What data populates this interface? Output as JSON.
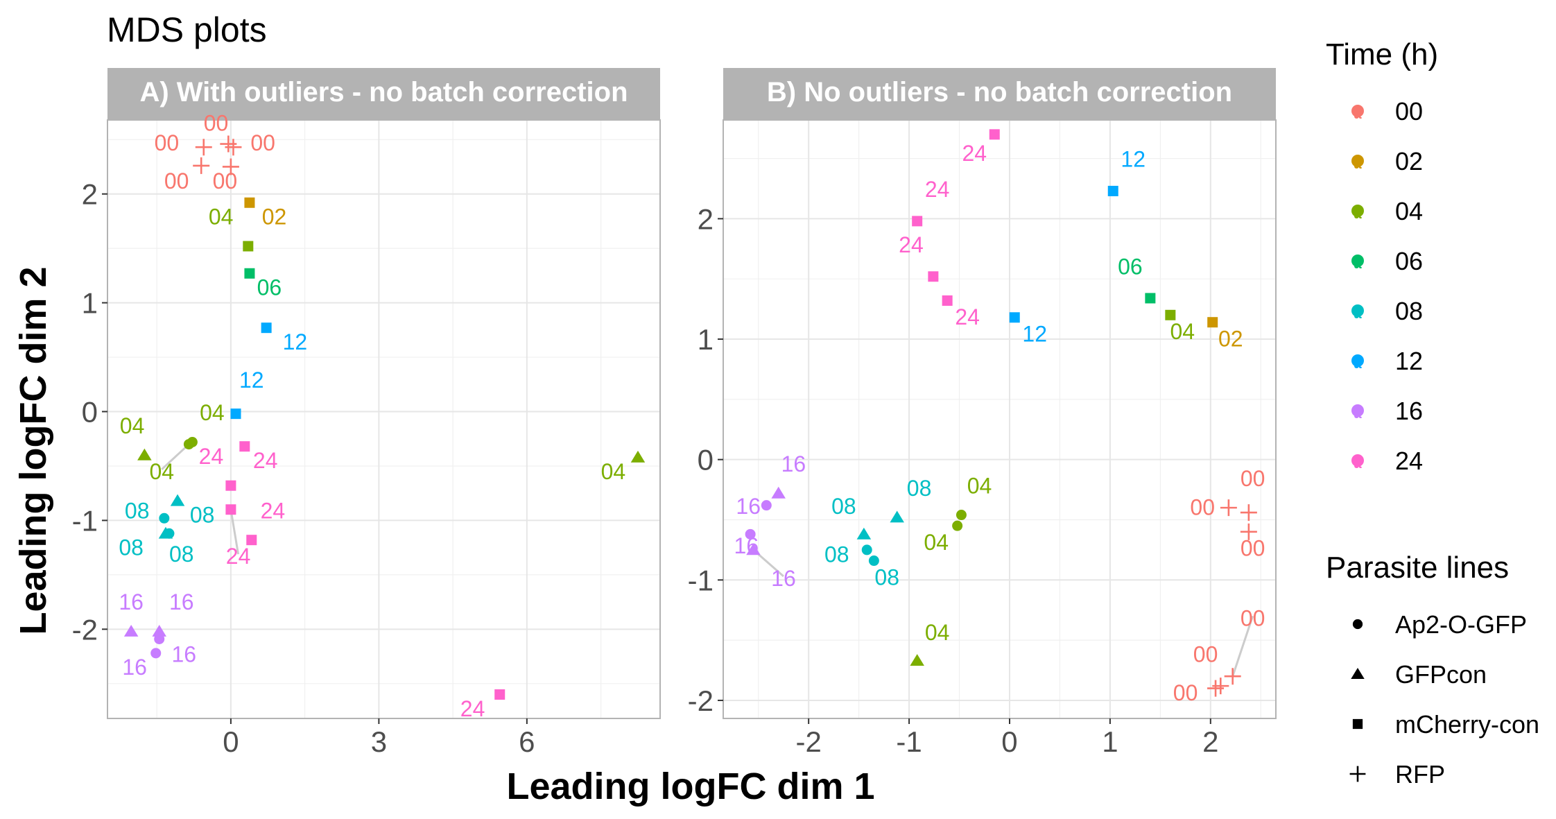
{
  "title": "MDS plots",
  "xlabel": "Leading logFC dim 1",
  "ylabel": "Leading logFC dim 2",
  "colors": {
    "00": "#F8766D",
    "02": "#CD9600",
    "04": "#7CAE00",
    "06": "#00BE67",
    "08": "#00BFC4",
    "12": "#00A9FF",
    "16": "#C77CFF",
    "24": "#FF61CC"
  },
  "legend": {
    "time": {
      "title": "Time (h)",
      "entries": [
        "00",
        "02",
        "04",
        "06",
        "08",
        "12",
        "16",
        "24"
      ]
    },
    "lines": {
      "title": "Parasite lines",
      "entries": [
        {
          "label": "Ap2-O-GFP",
          "shape": "circle"
        },
        {
          "label": "GFPcon",
          "shape": "triangle"
        },
        {
          "label": "mCherry-con",
          "shape": "square"
        },
        {
          "label": "RFP",
          "shape": "plus"
        }
      ]
    }
  },
  "chart_data": [
    {
      "type": "scatter",
      "title": "A) With outliers - no batch correction",
      "xlim": [
        -2.5,
        8.7
      ],
      "ylim": [
        -2.82,
        2.68
      ],
      "xticks": [
        0,
        3,
        6
      ],
      "yticks": [
        -2,
        -1,
        0,
        1,
        2
      ],
      "points": [
        {
          "x": -0.55,
          "y": 2.43,
          "time": "00",
          "line": "RFP",
          "label": "00",
          "lx": -1.3,
          "ly": 2.4
        },
        {
          "x": -0.05,
          "y": 2.46,
          "time": "00",
          "line": "RFP",
          "label": "00",
          "lx": -0.3,
          "ly": 2.58
        },
        {
          "x": 0.05,
          "y": 2.43,
          "time": "00",
          "line": "RFP",
          "label": "00",
          "lx": 0.65,
          "ly": 2.4
        },
        {
          "x": -0.6,
          "y": 2.26,
          "time": "00",
          "line": "RFP",
          "label": "00",
          "lx": -1.1,
          "ly": 2.05
        },
        {
          "x": 0.0,
          "y": 2.25,
          "time": "00",
          "line": "RFP",
          "label": "00",
          "lx": -0.12,
          "ly": 2.05
        },
        {
          "x": 0.38,
          "y": 1.92,
          "time": "02",
          "line": "mCherry-con",
          "label": "02",
          "lx": 0.88,
          "ly": 1.72
        },
        {
          "x": 0.35,
          "y": 1.52,
          "time": "04",
          "line": "mCherry-con",
          "label": "04",
          "lx": -0.2,
          "ly": 1.72
        },
        {
          "x": 0.38,
          "y": 1.27,
          "time": "06",
          "line": "mCherry-con",
          "label": "06",
          "lx": 0.78,
          "ly": 1.07
        },
        {
          "x": 0.72,
          "y": 0.77,
          "time": "12",
          "line": "mCherry-con",
          "label": "12",
          "lx": 1.3,
          "ly": 0.57
        },
        {
          "x": 0.1,
          "y": -0.02,
          "time": "12",
          "line": "mCherry-con",
          "label": "12",
          "lx": 0.42,
          "ly": 0.22
        },
        {
          "x": 0.28,
          "y": -0.32,
          "time": "24",
          "line": "mCherry-con",
          "label": "24",
          "lx": 0.7,
          "ly": -0.52
        },
        {
          "x": 0.0,
          "y": -0.68,
          "time": "24",
          "line": "mCherry-con",
          "label": "24",
          "lx": -0.4,
          "ly": -0.48
        },
        {
          "x": 0.0,
          "y": -0.9,
          "time": "24",
          "line": "mCherry-con",
          "label": "24",
          "lx": 0.15,
          "ly": -1.4,
          "seg": true
        },
        {
          "x": 0.42,
          "y": -1.18,
          "time": "24",
          "line": "mCherry-con",
          "label": "24",
          "lx": 0.85,
          "ly": -0.98
        },
        {
          "x": 5.45,
          "y": -2.6,
          "time": "24",
          "line": "mCherry-con",
          "label": "24",
          "lx": 4.9,
          "ly": -2.8
        },
        {
          "x": -1.75,
          "y": -0.4,
          "time": "04",
          "line": "GFPcon",
          "label": "04",
          "lx": -2.0,
          "ly": -0.2
        },
        {
          "x": 8.25,
          "y": -0.42,
          "time": "04",
          "line": "GFPcon",
          "label": "04",
          "lx": 7.75,
          "ly": -0.62
        },
        {
          "x": -0.85,
          "y": -0.3,
          "time": "04",
          "line": "Ap2-O-GFP",
          "label": "04",
          "lx": -1.4,
          "ly": -0.62,
          "seg": true
        },
        {
          "x": -0.78,
          "y": -0.28,
          "time": "04",
          "line": "Ap2-O-GFP",
          "label": "04",
          "lx": -0.38,
          "ly": -0.08
        },
        {
          "x": -1.08,
          "y": -0.82,
          "time": "08",
          "line": "GFPcon",
          "label": "08",
          "lx": -0.58,
          "ly": -1.02
        },
        {
          "x": -1.35,
          "y": -0.98,
          "time": "08",
          "line": "Ap2-O-GFP",
          "label": "08",
          "lx": -1.9,
          "ly": -0.98
        },
        {
          "x": -1.32,
          "y": -1.12,
          "time": "08",
          "line": "GFPcon",
          "label": "08",
          "lx": -2.02,
          "ly": -1.32
        },
        {
          "x": -1.25,
          "y": -1.12,
          "time": "08",
          "line": "Ap2-O-GFP",
          "label": "08",
          "lx": -1.0,
          "ly": -1.38
        },
        {
          "x": -2.02,
          "y": -2.02,
          "time": "16",
          "line": "GFPcon",
          "label": "16",
          "lx": -2.02,
          "ly": -1.82
        },
        {
          "x": -1.45,
          "y": -2.02,
          "time": "16",
          "line": "GFPcon",
          "label": "16",
          "lx": -1.0,
          "ly": -1.82
        },
        {
          "x": -1.45,
          "y": -2.09,
          "time": "16",
          "line": "Ap2-O-GFP",
          "label": "16",
          "lx": -0.95,
          "ly": -2.3
        },
        {
          "x": -1.52,
          "y": -2.22,
          "time": "16",
          "line": "Ap2-O-GFP",
          "label": "16",
          "lx": -1.95,
          "ly": -2.42
        }
      ]
    },
    {
      "type": "scatter",
      "title": "B) No outliers - no batch correction",
      "xlim": [
        -2.85,
        2.65
      ],
      "ylim": [
        -2.15,
        2.82
      ],
      "xticks": [
        -2,
        -1,
        0,
        1,
        2
      ],
      "yticks": [
        -2,
        -1,
        0,
        1,
        2
      ],
      "points": [
        {
          "x": -0.15,
          "y": 2.7,
          "time": "24",
          "line": "mCherry-con",
          "label": "24",
          "lx": -0.35,
          "ly": 2.48
        },
        {
          "x": -0.92,
          "y": 1.98,
          "time": "24",
          "line": "mCherry-con",
          "label": "24",
          "lx": -0.72,
          "ly": 2.18
        },
        {
          "x": -0.76,
          "y": 1.52,
          "time": "24",
          "line": "mCherry-con",
          "label": "24",
          "lx": -0.98,
          "ly": 1.72
        },
        {
          "x": -0.62,
          "y": 1.32,
          "time": "24",
          "line": "mCherry-con",
          "label": "24",
          "lx": -0.42,
          "ly": 1.12
        },
        {
          "x": 1.03,
          "y": 2.23,
          "time": "12",
          "line": "mCherry-con",
          "label": "12",
          "lx": 1.23,
          "ly": 2.43
        },
        {
          "x": 0.05,
          "y": 1.18,
          "time": "12",
          "line": "mCherry-con",
          "label": "12",
          "lx": 0.25,
          "ly": 0.98
        },
        {
          "x": 1.4,
          "y": 1.34,
          "time": "06",
          "line": "mCherry-con",
          "label": "06",
          "lx": 1.2,
          "ly": 1.54
        },
        {
          "x": 1.6,
          "y": 1.2,
          "time": "04",
          "line": "mCherry-con",
          "label": "04",
          "lx": 1.72,
          "ly": 1.0
        },
        {
          "x": 2.02,
          "y": 1.14,
          "time": "02",
          "line": "mCherry-con",
          "label": "02",
          "lx": 2.2,
          "ly": 0.94
        },
        {
          "x": -2.3,
          "y": -0.28,
          "time": "16",
          "line": "GFPcon",
          "label": "16",
          "lx": -2.15,
          "ly": -0.1
        },
        {
          "x": -2.42,
          "y": -0.38,
          "time": "16",
          "line": "Ap2-O-GFP",
          "label": "16",
          "lx": -2.6,
          "ly": -0.45
        },
        {
          "x": -2.58,
          "y": -0.62,
          "time": "16",
          "line": "Ap2-O-GFP",
          "label": "16",
          "lx": -2.62,
          "ly": -0.78
        },
        {
          "x": -2.55,
          "y": -0.75,
          "time": "16",
          "line": "GFPcon",
          "label": "16",
          "lx": -2.25,
          "ly": -1.05,
          "seg": true
        },
        {
          "x": -1.45,
          "y": -0.62,
          "time": "08",
          "line": "GFPcon",
          "label": "08",
          "lx": -1.65,
          "ly": -0.45
        },
        {
          "x": -1.12,
          "y": -0.48,
          "time": "08",
          "line": "GFPcon",
          "label": "08",
          "lx": -0.9,
          "ly": -0.3
        },
        {
          "x": -1.42,
          "y": -0.75,
          "time": "08",
          "line": "Ap2-O-GFP",
          "label": "08",
          "lx": -1.72,
          "ly": -0.85
        },
        {
          "x": -1.35,
          "y": -0.84,
          "time": "08",
          "line": "Ap2-O-GFP",
          "label": "08",
          "lx": -1.22,
          "ly": -1.04
        },
        {
          "x": -0.48,
          "y": -0.46,
          "time": "04",
          "line": "Ap2-O-GFP",
          "label": "04",
          "lx": -0.3,
          "ly": -0.28
        },
        {
          "x": -0.52,
          "y": -0.55,
          "time": "04",
          "line": "Ap2-O-GFP",
          "label": "04",
          "lx": -0.73,
          "ly": -0.75
        },
        {
          "x": -0.92,
          "y": -1.67,
          "time": "04",
          "line": "GFPcon",
          "label": "04",
          "lx": -0.72,
          "ly": -1.5
        },
        {
          "x": 2.18,
          "y": -0.4,
          "time": "00",
          "line": "RFP",
          "label": "00",
          "lx": 1.92,
          "ly": -0.46
        },
        {
          "x": 2.38,
          "y": -0.44,
          "time": "00",
          "line": "RFP",
          "label": "00",
          "lx": 2.42,
          "ly": -0.22
        },
        {
          "x": 2.38,
          "y": -0.6,
          "time": "00",
          "line": "RFP",
          "label": "00",
          "lx": 2.42,
          "ly": -0.8
        },
        {
          "x": 2.22,
          "y": -1.8,
          "time": "00",
          "line": "RFP",
          "label": "00",
          "lx": 2.42,
          "ly": -1.38,
          "seg": true
        },
        {
          "x": 2.1,
          "y": -1.88,
          "time": "00",
          "line": "RFP",
          "label": "00",
          "lx": 1.95,
          "ly": -1.68
        },
        {
          "x": 2.05,
          "y": -1.9,
          "time": "00",
          "line": "RFP",
          "label": "00",
          "lx": 1.75,
          "ly": -2.0
        }
      ]
    }
  ]
}
